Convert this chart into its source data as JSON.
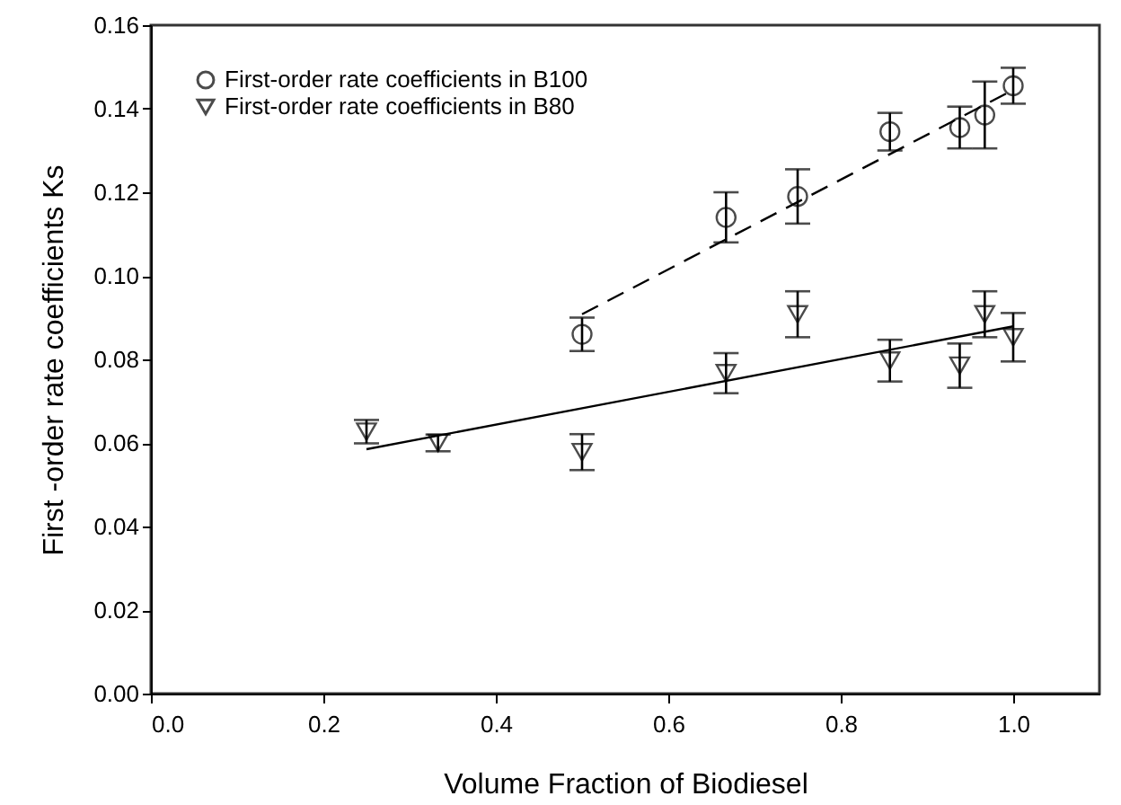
{
  "chart_data": {
    "type": "scatter",
    "xlabel": "Volume Fraction of Biodiesel",
    "ylabel": "First -order rate coefficients Ks",
    "xlim": [
      0,
      1.1
    ],
    "ylim": [
      0,
      0.16
    ],
    "xticks": [
      {
        "value": 0,
        "label": "0.0"
      },
      0.2,
      0.4,
      0.6,
      0.8,
      {
        "value": 1,
        "label": "1.0"
      }
    ],
    "yticks": [
      {
        "value": 0,
        "label": "0.00"
      },
      0.02,
      0.04,
      0.06,
      0.08,
      {
        "value": 0.1,
        "label": "0.10"
      },
      0.12,
      0.14,
      0.16
    ],
    "grid": false,
    "legend": "top left",
    "series": [
      {
        "name": "First-order rate coefficients in B100",
        "marker": "circle",
        "color": "#000000",
        "x": [
          0.5,
          0.667,
          0.75,
          0.857,
          0.938,
          0.967,
          1.0
        ],
        "values": [
          0.086,
          0.114,
          0.119,
          0.1345,
          0.1355,
          0.1385,
          0.1455
        ],
        "errors": [
          0.004,
          0.006,
          0.0065,
          0.0045,
          0.005,
          0.008,
          0.0043
        ]
      },
      {
        "name": "First-order rate coefficients in B80",
        "marker": "triangle",
        "color": "#000000",
        "x": [
          0.25,
          0.333,
          0.5,
          0.667,
          0.75,
          0.857,
          0.938,
          0.967,
          1.0
        ],
        "values": [
          0.0627,
          0.06,
          0.0578,
          0.0767,
          0.0908,
          0.0797,
          0.0785,
          0.0908,
          0.0853
        ],
        "errors": [
          0.0028,
          0.002,
          0.0043,
          0.0048,
          0.0055,
          0.005,
          0.0053,
          0.0055,
          0.0058
        ]
      },
      {
        "type": "line",
        "line_style": "dashed",
        "color": "#000000",
        "x": [
          0.5,
          1.0
        ],
        "values": [
          0.0908,
          0.1445
        ]
      },
      {
        "type": "line",
        "line_style": "solid",
        "color": "#000000",
        "x": [
          0.25,
          1.0
        ],
        "values": [
          0.0585,
          0.0879
        ]
      }
    ]
  }
}
